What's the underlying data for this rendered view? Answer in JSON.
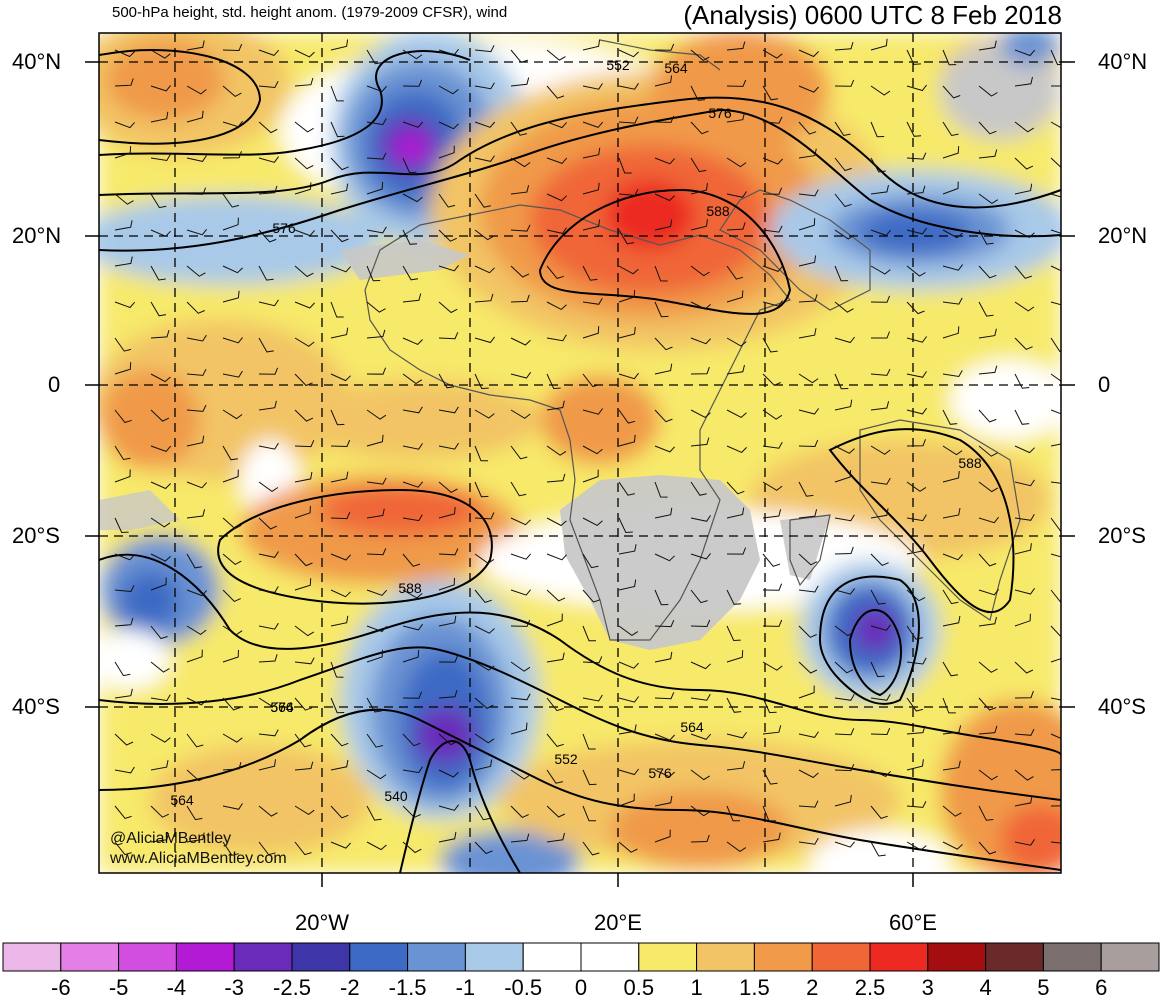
{
  "header": {
    "left_title": "500-hPa height, std. height anom. (1979-2009 CFSR), wind",
    "right_title": "(Analysis) 0600 UTC 8 Feb 2018"
  },
  "axes": {
    "lat_labels_left": [
      "40°N",
      "20°N",
      "0",
      "20°S",
      "40°S"
    ],
    "lat_labels_right": [
      "40°N",
      "20°N",
      "0",
      "20°S",
      "40°S"
    ],
    "lon_labels": [
      "20°W",
      "20°E",
      "60°E"
    ]
  },
  "contour_labels": [
    "552",
    "564",
    "576",
    "588",
    "576",
    "588",
    "588",
    "576",
    "564",
    "576",
    "564",
    "552",
    "540",
    "564"
  ],
  "watermark": {
    "line1": "@AliciaMBentley",
    "line2": "www.AliciaMBentley.com"
  },
  "colorbar": {
    "labels": [
      "-6",
      "-5",
      "-4",
      "-3",
      "-2.5",
      "-2",
      "-1.5",
      "-1",
      "-0.5",
      "0",
      "0.5",
      "1",
      "1.5",
      "2",
      "2.5",
      "3",
      "4",
      "5",
      "6"
    ],
    "colors": [
      "#ebb6e8",
      "#e37fe6",
      "#d24ee0",
      "#b21ad6",
      "#6a2aba",
      "#3e35a8",
      "#3d6ac4",
      "#6a93d3",
      "#a8c9e8",
      "#ffffff",
      "#ffffff",
      "#f7e96a",
      "#f2c465",
      "#f09a4a",
      "#f06637",
      "#ec2a22",
      "#a50e10",
      "#6b2a2a",
      "#7a6e6e",
      "#a89e9e"
    ]
  },
  "colors": {
    "land_gray": "#c8c8c8",
    "contour": "#000000",
    "coast": "#555555"
  }
}
